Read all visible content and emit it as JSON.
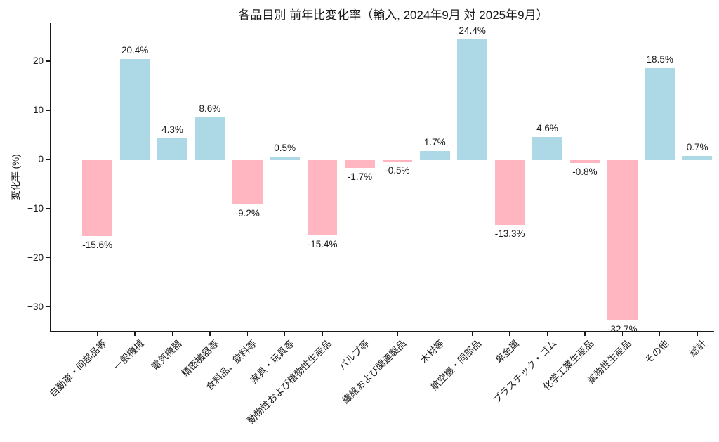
{
  "chart_data": {
    "type": "bar",
    "title": "各品目別 前年比変化率（輸入, 2024年9月 対 2025年9月）",
    "ylabel": "変化率 (%)",
    "xlabel": "",
    "categories": [
      "自動車・同部品等",
      "一般機械",
      "電気機器",
      "精密機器等",
      "食料品、飲料等",
      "家具・玩具等",
      "動物性および植物性生産品",
      "パルプ等",
      "繊維および関連製品",
      "木材等",
      "航空機・同部品",
      "卑金属",
      "プラスチック・ゴム",
      "化学工業生産品",
      "鉱物性生産品",
      "その他",
      "総計"
    ],
    "values": [
      -15.6,
      20.4,
      4.3,
      8.6,
      -9.2,
      0.5,
      -15.4,
      -1.7,
      -0.5,
      1.7,
      24.4,
      -13.3,
      4.6,
      -0.8,
      -32.7,
      18.5,
      0.7
    ],
    "bar_labels": [
      "-15.6%",
      "20.4%",
      "4.3%",
      "8.6%",
      "-9.2%",
      "0.5%",
      "-15.4%",
      "-1.7%",
      "-0.5%",
      "1.7%",
      "24.4%",
      "-13.3%",
      "4.6%",
      "-0.8%",
      "-32.7%",
      "18.5%",
      "0.7%"
    ],
    "yticks": [
      20,
      10,
      0,
      -10,
      -20,
      -30
    ],
    "ytick_labels": [
      "20",
      "10",
      "0",
      "−10",
      "−20",
      "−30"
    ],
    "ylim": [
      -35.05,
      27.7
    ],
    "grid": false,
    "legend": "none",
    "colors": {
      "positive": "#ADD8E6",
      "negative": "#FFB6C1",
      "axis": "#1a1a1a",
      "text": "#1a1a1a",
      "background": "#ffffff"
    }
  }
}
